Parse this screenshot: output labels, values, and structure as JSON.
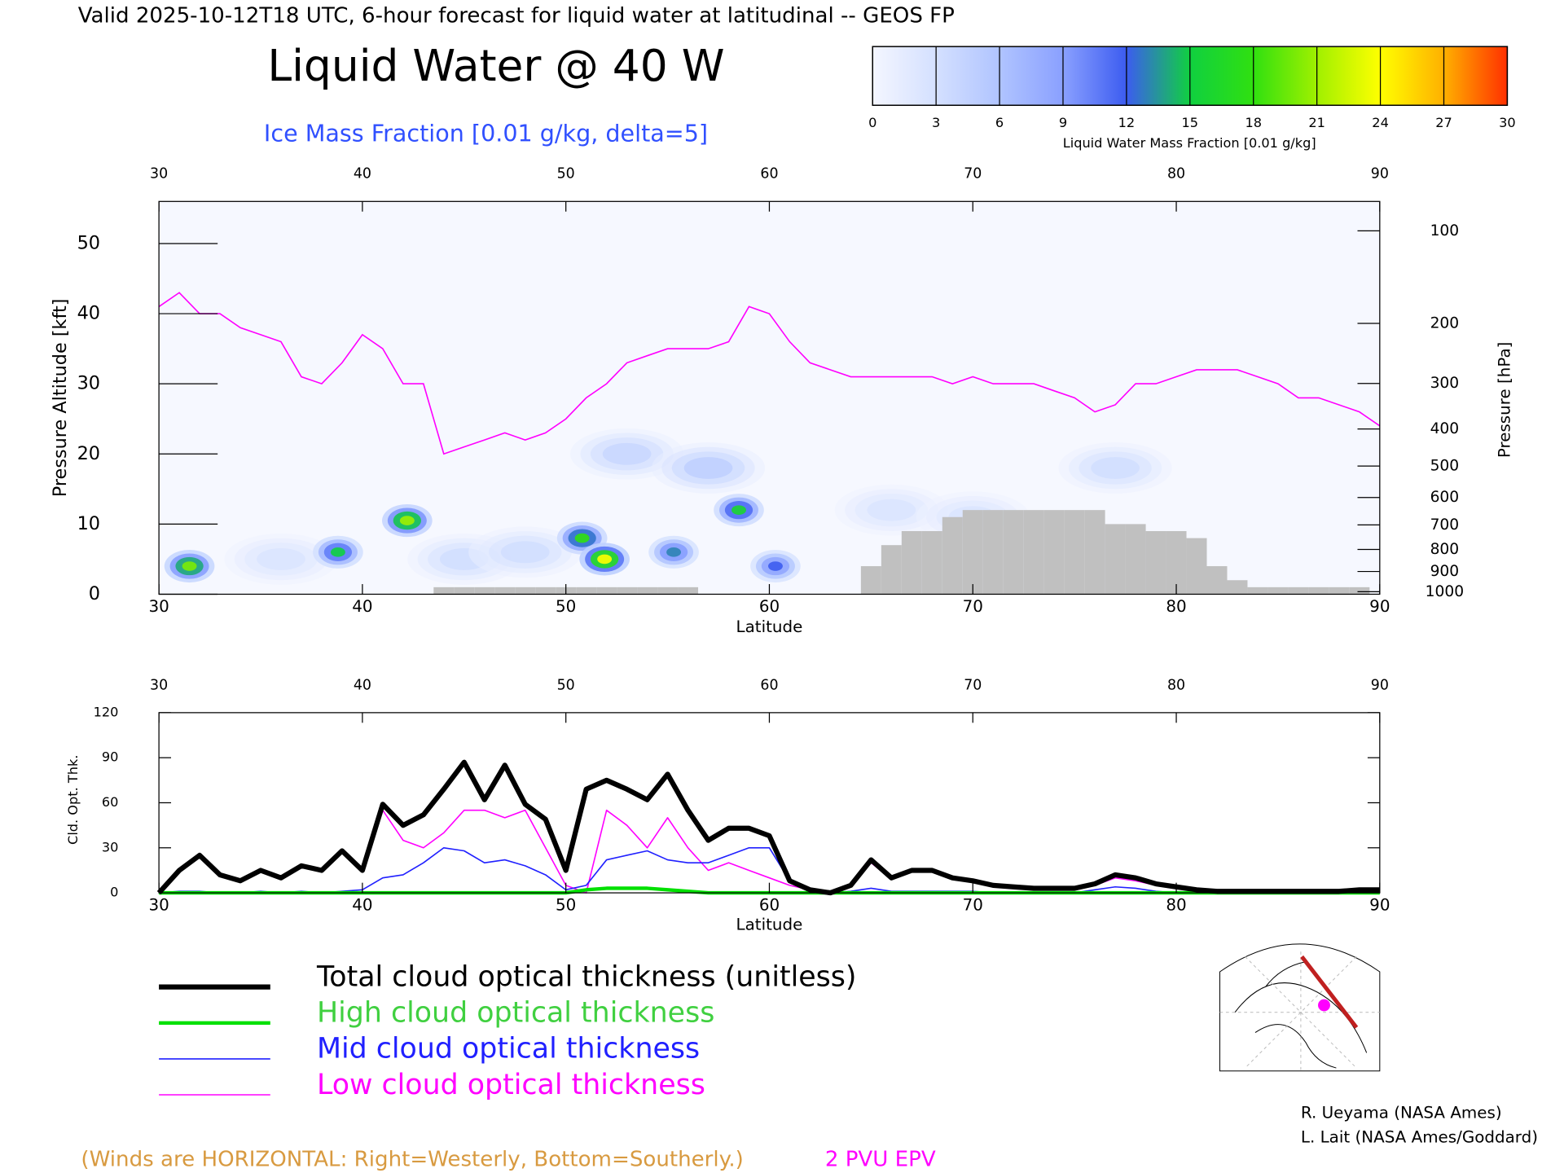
{
  "header": {
    "title": "Valid 2025-10-12T18 UTC, 6-hour forecast for liquid water at latitudinal -- GEOS FP",
    "main_title": "Liquid Water @ 40 W",
    "subtitle": "Ice Mass Fraction [0.01 g/kg, delta=5]"
  },
  "chart_data": [
    {
      "type": "contour",
      "x_label": "Latitude",
      "y_label": "Pressure Altitude [kft]",
      "y2_label": "Pressure [hPa]",
      "xlim": [
        30,
        90
      ],
      "xticks": [
        30,
        40,
        50,
        60,
        70,
        80,
        90
      ],
      "ylim": [
        0,
        56
      ],
      "yticks": [
        0,
        10,
        20,
        30,
        40,
        50
      ],
      "y2scale": "pressure-altitude",
      "y2ticks": [
        100,
        200,
        300,
        400,
        500,
        600,
        700,
        800,
        900,
        1000
      ],
      "colorbar": {
        "label": "Liquid Water Mass Fraction [0.01 g/kg]",
        "ticks": [
          0,
          3,
          6,
          9,
          12,
          15,
          18,
          21,
          24,
          27,
          30
        ],
        "colors": [
          "#f4f6ff",
          "#d4e0ff",
          "#b0c4ff",
          "#8aa0ff",
          "#3c5cf0",
          "#10d040",
          "#30e010",
          "#a0f000",
          "#ffff00",
          "#ffb000",
          "#ff3000"
        ]
      },
      "liquid_water": {
        "x": [
          31.5,
          38.8,
          42.2,
          50.8,
          51.9,
          55.3,
          58.5,
          60.3,
          36,
          45,
          48,
          53,
          57,
          66,
          70,
          77
        ],
        "y": [
          4,
          6,
          10.5,
          8,
          5,
          6,
          12,
          4,
          5,
          5,
          6,
          20,
          18,
          12,
          11,
          18
        ],
        "values": [
          20,
          15,
          21,
          18,
          24,
          13,
          16,
          12,
          3,
          4,
          4,
          5,
          6,
          3,
          3,
          4
        ]
      },
      "epv": {
        "name": "2 PVU EPV",
        "color": "#ff00ff",
        "x": [
          30,
          31,
          32,
          33,
          34,
          35,
          36,
          37,
          38,
          39,
          40,
          41,
          42,
          43,
          44,
          45,
          46,
          47,
          48,
          49,
          50,
          51,
          52,
          53,
          54,
          55,
          56,
          57,
          58,
          59,
          60,
          61,
          62,
          63,
          64,
          65,
          66,
          67,
          68,
          69,
          70,
          71,
          72,
          73,
          74,
          75,
          76,
          77,
          78,
          79,
          80,
          81,
          82,
          83,
          84,
          85,
          86,
          87,
          88,
          89,
          90
        ],
        "values": [
          41,
          43,
          40,
          40,
          38,
          37,
          36,
          31,
          30,
          33,
          37,
          35,
          30,
          30,
          20,
          21,
          22,
          23,
          22,
          23,
          25,
          28,
          30,
          33,
          34,
          35,
          35,
          35,
          36,
          41,
          40,
          36,
          33,
          32,
          31,
          31,
          31,
          31,
          31,
          30,
          31,
          30,
          30,
          30,
          29,
          28,
          26,
          27,
          30,
          30,
          31,
          32,
          32,
          32,
          31,
          30,
          28,
          28,
          27,
          26,
          24
        ]
      },
      "terrain": {
        "color": "#c0c0c0",
        "x": [
          44,
          45,
          46,
          47,
          48,
          49,
          50,
          51,
          52,
          53,
          54,
          55,
          56,
          65,
          66,
          67,
          68,
          69,
          70,
          71,
          72,
          73,
          74,
          75,
          76,
          77,
          78,
          79,
          80,
          81,
          82,
          83,
          84,
          85,
          86,
          87,
          88,
          89
        ],
        "values": [
          1,
          1,
          1,
          1,
          1,
          1,
          1,
          1,
          1,
          1,
          1,
          1,
          1,
          4,
          7,
          9,
          9,
          11,
          12,
          12,
          12,
          12,
          12,
          12,
          12,
          10,
          10,
          9,
          9,
          8,
          4,
          2,
          1,
          1,
          1,
          1,
          1,
          1
        ]
      }
    },
    {
      "type": "line",
      "x_label": "Latitude",
      "y_label": "Cld. Opt. Thk.",
      "xlim": [
        30,
        90
      ],
      "xticks": [
        30,
        40,
        50,
        60,
        70,
        80,
        90
      ],
      "ylim": [
        0,
        120
      ],
      "yticks": [
        0,
        30,
        60,
        90,
        120
      ],
      "x": [
        30,
        31,
        32,
        33,
        34,
        35,
        36,
        37,
        38,
        39,
        40,
        41,
        42,
        43,
        44,
        45,
        46,
        47,
        48,
        49,
        50,
        51,
        52,
        53,
        54,
        55,
        56,
        57,
        58,
        59,
        60,
        61,
        62,
        63,
        64,
        65,
        66,
        67,
        68,
        69,
        70,
        71,
        72,
        73,
        74,
        75,
        76,
        77,
        78,
        79,
        80,
        81,
        82,
        83,
        84,
        85,
        86,
        87,
        88,
        89,
        90
      ],
      "series": [
        {
          "name": "Low cloud optical thickness",
          "color": "#ff00ff",
          "width": 1.3,
          "values": [
            0,
            15,
            25,
            12,
            8,
            15,
            10,
            18,
            15,
            28,
            15,
            55,
            35,
            30,
            40,
            55,
            55,
            50,
            55,
            30,
            5,
            0,
            55,
            45,
            30,
            50,
            30,
            15,
            20,
            15,
            10,
            5,
            2,
            0,
            4,
            20,
            9,
            14,
            14,
            9,
            7,
            5,
            4,
            3,
            3,
            3,
            5,
            10,
            8,
            5,
            3,
            2,
            1,
            1,
            1,
            1,
            1,
            1,
            1,
            2,
            2
          ]
        },
        {
          "name": "Mid cloud optical thickness",
          "color": "#2020ff",
          "width": 1.3,
          "values": [
            0,
            1,
            1,
            0,
            0,
            1,
            0,
            1,
            0,
            1,
            2,
            10,
            12,
            20,
            30,
            28,
            20,
            22,
            18,
            12,
            2,
            5,
            22,
            25,
            28,
            22,
            20,
            20,
            25,
            30,
            30,
            8,
            1,
            0,
            1,
            3,
            1,
            1,
            1,
            1,
            1,
            0,
            0,
            0,
            0,
            0,
            2,
            4,
            3,
            1,
            0,
            0,
            0,
            0,
            0,
            0,
            0,
            0,
            0,
            0,
            0
          ]
        },
        {
          "name": "High cloud optical thickness",
          "color": "#00e000",
          "width": 3.5,
          "values": [
            0,
            0,
            0,
            0,
            0,
            0,
            0,
            0,
            0,
            0,
            0,
            0,
            0,
            0,
            0,
            0,
            0,
            0,
            0,
            0,
            0,
            2,
            3,
            3,
            3,
            2,
            1,
            0,
            0,
            0,
            0,
            0,
            0,
            0,
            0,
            0,
            0,
            0,
            0,
            0,
            0,
            0,
            0,
            0,
            0,
            0,
            0,
            0,
            0,
            0,
            0,
            0,
            0,
            0,
            0,
            0,
            0,
            0,
            0,
            0,
            0
          ]
        },
        {
          "name": "Total cloud optical thickness (unitless)",
          "color": "#000000",
          "width": 5,
          "values": [
            0,
            15,
            25,
            12,
            8,
            15,
            10,
            18,
            15,
            28,
            15,
            59,
            45,
            52,
            69,
            87,
            62,
            85,
            59,
            49,
            15,
            69,
            75,
            69,
            62,
            79,
            55,
            35,
            43,
            43,
            38,
            8,
            2,
            0,
            5,
            22,
            10,
            15,
            15,
            10,
            8,
            5,
            4,
            3,
            3,
            3,
            6,
            12,
            10,
            6,
            4,
            2,
            1,
            1,
            1,
            1,
            1,
            1,
            1,
            2,
            2
          ]
        }
      ]
    }
  ],
  "footer": {
    "winds_note": "(Winds are HORIZONTAL: Right=Westerly, Bottom=Southerly.)",
    "credits": [
      "R. Ueyama (NASA Ames)",
      "L. Lait (NASA Ames/Goddard)"
    ]
  }
}
